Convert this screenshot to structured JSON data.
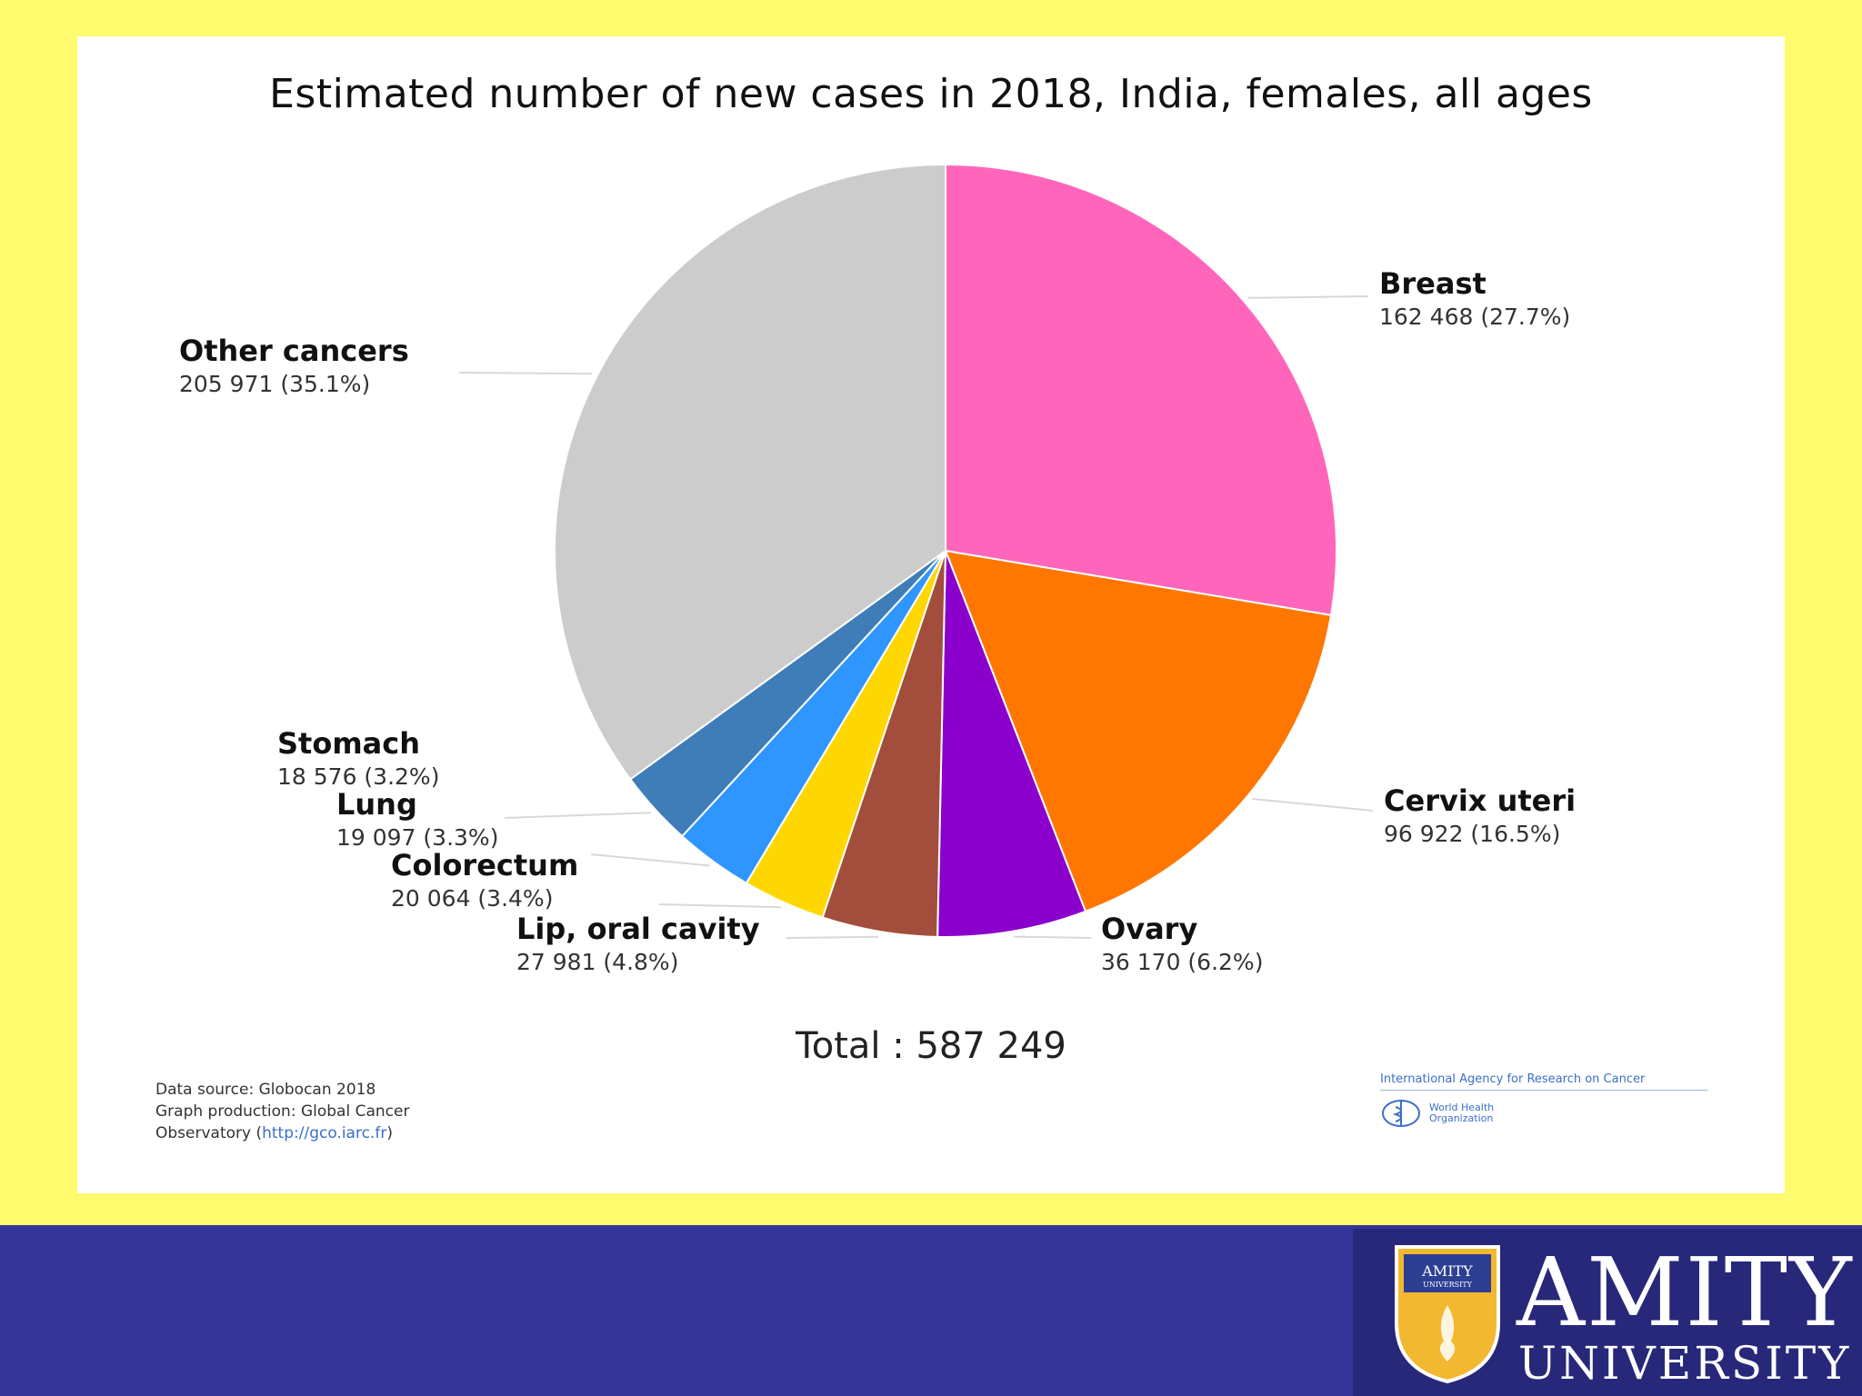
{
  "chart_data": {
    "type": "pie",
    "title": "Estimated number of new cases in 2018, India, females, all ages",
    "total_label": "Total : 587 249",
    "slices": [
      {
        "name": "Breast",
        "value_text": "162 468 (27.7%)",
        "value": 162468,
        "percent": 27.7,
        "color": "#FF66BB"
      },
      {
        "name": "Cervix uteri",
        "value_text": "96 922 (16.5%)",
        "value": 96922,
        "percent": 16.5,
        "color": "#FF7700"
      },
      {
        "name": "Ovary",
        "value_text": "36 170 (6.2%)",
        "value": 36170,
        "percent": 6.2,
        "color": "#8B00CC"
      },
      {
        "name": "Lip, oral cavity",
        "value_text": "27 981 (4.8%)",
        "value": 27981,
        "percent": 4.8,
        "color": "#A34E3C"
      },
      {
        "name": "Colorectum",
        "value_text": "20 064 (3.4%)",
        "value": 20064,
        "percent": 3.4,
        "color": "#FFD700"
      },
      {
        "name": "Lung",
        "value_text": "19 097 (3.3%)",
        "value": 19097,
        "percent": 3.3,
        "color": "#2F96FF"
      },
      {
        "name": "Stomach",
        "value_text": "18 576 (3.2%)",
        "value": 18576,
        "percent": 3.2,
        "color": "#3F7DB8"
      },
      {
        "name": "Other cancers",
        "value_text": "205 971 (35.1%)",
        "value": 205971,
        "percent": 35.1,
        "color": "#CCCCCC"
      }
    ]
  },
  "source": {
    "line1": "Data source: Globocan 2018",
    "line2": "Graph production: Global Cancer",
    "line3_prefix": "Observatory (",
    "link": "http://gco.iarc.fr",
    "line3_suffix": ")"
  },
  "agency": {
    "iarc": "International Agency for Research on Cancer",
    "who": "World Health Organization"
  },
  "footer": {
    "logo_small": "AMITY",
    "logo_small_sub": "UNIVERSITY",
    "brand": "AMITY",
    "brand_sub": "UNIVERSITY",
    "bar_color": "#35359A"
  }
}
